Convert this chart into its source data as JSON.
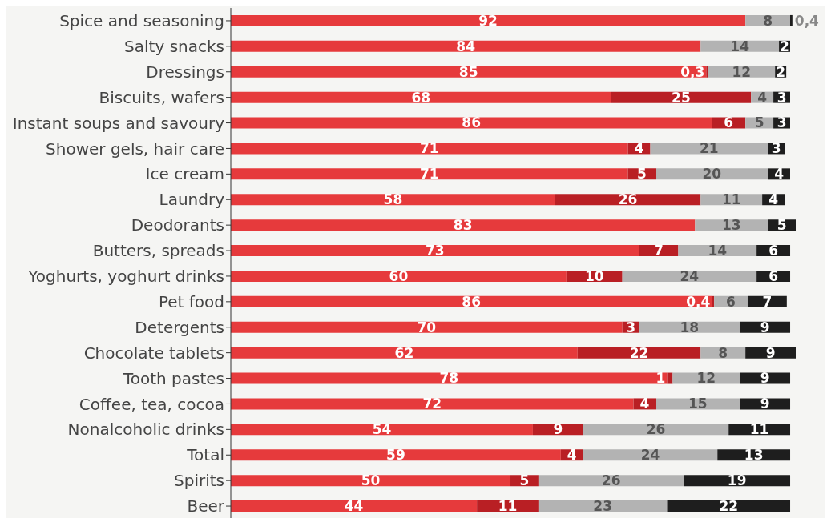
{
  "chart_data": {
    "type": "bar",
    "orientation": "horizontal",
    "stacked": true,
    "legend": false,
    "grid": false,
    "tick_labels": "y",
    "categories": [
      "Spice and seasoning",
      "Salty snacks",
      "Dressings",
      "Biscuits, wafers",
      "Instant soups and savoury",
      "Shower gels, hair care",
      "Ice cream",
      "Laundry",
      "Deodorants",
      "Butters, spreads",
      "Yoghurts, yoghurt drinks",
      "Pet food",
      "Detergents",
      "Chocolate tablets",
      "Tooth pastes",
      "Coffee, tea, cocoa",
      "Nonalcoholic drinks",
      "Total",
      "Spirits",
      "Beer"
    ],
    "series": [
      {
        "color": "#e63a3c",
        "values": [
          92,
          84,
          85,
          68,
          86,
          71,
          71,
          58,
          83,
          73,
          60,
          86,
          70,
          62,
          78,
          72,
          54,
          59,
          50,
          44
        ],
        "value_labels": [
          "92",
          "84",
          "85",
          "68",
          "86",
          "71",
          "71",
          "58",
          "83",
          "73",
          "60",
          "86",
          "70",
          "62",
          "78",
          "72",
          "54",
          "59",
          "50",
          "44"
        ]
      },
      {
        "color": "#b91f24",
        "values": [
          null,
          null,
          0.3,
          25,
          6,
          4,
          5,
          26,
          null,
          7,
          10,
          0.4,
          3,
          22,
          1,
          4,
          9,
          4,
          5,
          11
        ],
        "value_labels": [
          null,
          null,
          "0,3",
          "25",
          "6",
          "4",
          "5",
          "26",
          null,
          "7",
          "10",
          "0,4",
          "3",
          "22",
          "1",
          "4",
          "9",
          "4",
          "5",
          "11"
        ]
      },
      {
        "color": "#b3b3b3",
        "values": [
          8,
          14,
          12,
          4,
          5,
          21,
          20,
          11,
          13,
          14,
          24,
          6,
          18,
          8,
          12,
          15,
          26,
          24,
          26,
          23
        ],
        "value_labels": [
          "8",
          "14",
          "12",
          "4",
          "5",
          "21",
          "20",
          "11",
          "13",
          "14",
          "24",
          "6",
          "18",
          "8",
          "12",
          "15",
          "26",
          "24",
          "26",
          "23"
        ]
      },
      {
        "color": "#1e1e1e",
        "values": [
          0.4,
          2,
          2,
          3,
          3,
          3,
          4,
          4,
          5,
          6,
          6,
          7,
          9,
          9,
          9,
          9,
          11,
          13,
          19,
          22
        ],
        "value_labels": [
          "0,4",
          "2",
          "2",
          "3",
          "3",
          "3",
          "4",
          "4",
          "5",
          "6",
          "6",
          "7",
          "9",
          "9",
          "9",
          "9",
          "11",
          "13",
          "19",
          "22"
        ]
      }
    ]
  }
}
